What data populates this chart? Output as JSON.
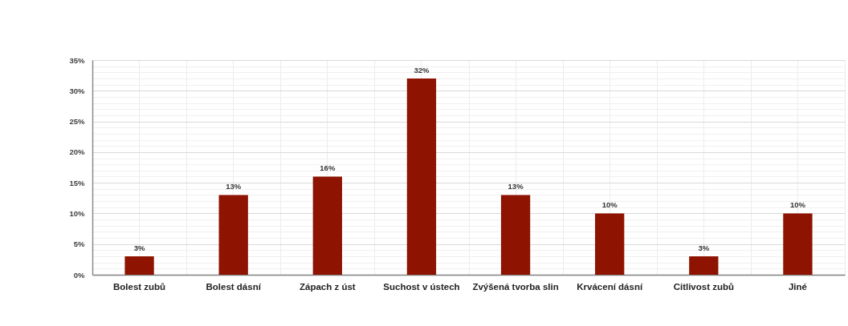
{
  "chart_data": {
    "type": "bar",
    "categories": [
      "Bolest zubů",
      "Bolest dásní",
      "Zápach z úst",
      "Suchost v ústech",
      "Zvýšená tvorba slin",
      "Krvácení dásní",
      "Citlivost zubů",
      "Jiné"
    ],
    "values": [
      3,
      13,
      16,
      32,
      13,
      10,
      3,
      10
    ],
    "value_labels": [
      "3%",
      "13%",
      "16%",
      "32%",
      "13%",
      "10%",
      "3%",
      "10%"
    ],
    "color": "#8e1300",
    "ylim": [
      0,
      35
    ],
    "yticks": [
      {
        "value": 0,
        "label": "0%"
      },
      {
        "value": 1,
        "label": null
      },
      {
        "value": 2,
        "label": null
      },
      {
        "value": 3,
        "label": null
      },
      {
        "value": 4,
        "label": null
      },
      {
        "value": 5,
        "label": "5%"
      },
      {
        "value": 6,
        "label": null
      },
      {
        "value": 7,
        "label": null
      },
      {
        "value": 8,
        "label": null
      },
      {
        "value": 9,
        "label": null
      },
      {
        "value": 10,
        "label": "10%"
      },
      {
        "value": 11,
        "label": null
      },
      {
        "value": 12,
        "label": null
      },
      {
        "value": 13,
        "label": null
      },
      {
        "value": 14,
        "label": null
      },
      {
        "value": 15,
        "label": "15%"
      },
      {
        "value": 16,
        "label": null
      },
      {
        "value": 17,
        "label": null
      },
      {
        "value": 18,
        "label": null
      },
      {
        "value": 19,
        "label": null
      },
      {
        "value": 20,
        "label": "20%"
      },
      {
        "value": 21,
        "label": null
      },
      {
        "value": 22,
        "label": null
      },
      {
        "value": 23,
        "label": null
      },
      {
        "value": 24,
        "label": null
      },
      {
        "value": 25,
        "label": "25%"
      },
      {
        "value": 26,
        "label": null
      },
      {
        "value": 27,
        "label": null
      },
      {
        "value": 28,
        "label": null
      },
      {
        "value": 29,
        "label": null
      },
      {
        "value": 30,
        "label": "30%"
      },
      {
        "value": 31,
        "label": null
      },
      {
        "value": 32,
        "label": null
      },
      {
        "value": 33,
        "label": null
      },
      {
        "value": 34,
        "label": null
      },
      {
        "value": 35,
        "label": "35%"
      }
    ],
    "grid": true
  }
}
